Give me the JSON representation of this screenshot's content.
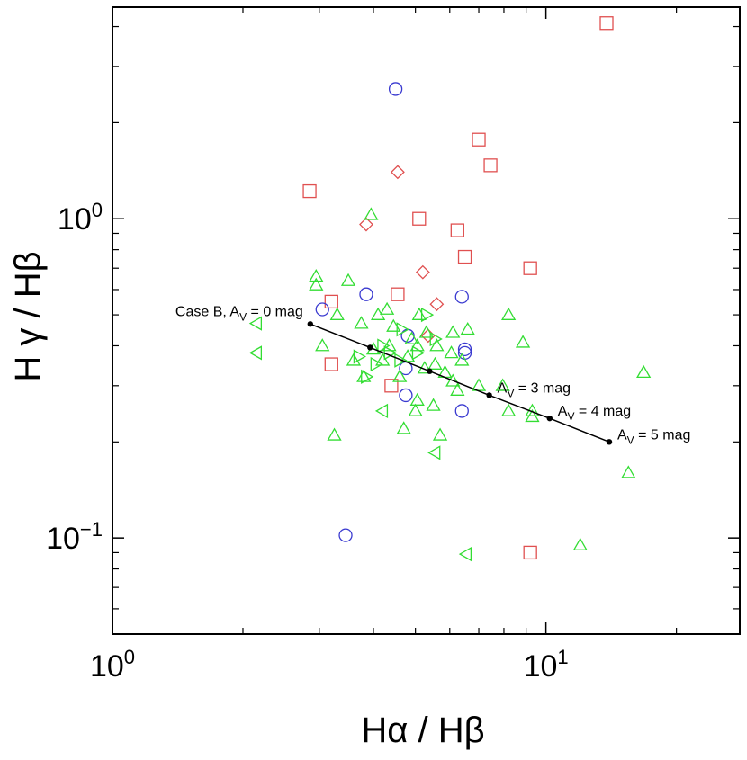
{
  "chart_data": {
    "type": "scatter",
    "title": "",
    "xlabel": "Hα / Hβ",
    "ylabel": "H γ / Hβ",
    "xscale": "log",
    "yscale": "log",
    "xlim": [
      1.0,
      28.0
    ],
    "ylim": [
      0.05,
      4.6
    ],
    "xticks": [
      {
        "value": 1,
        "base": "10",
        "exp": "0"
      },
      {
        "value": 10,
        "base": "10",
        "exp": "1"
      }
    ],
    "yticks": [
      {
        "value": 0.1,
        "base": "10",
        "exp": "−1"
      },
      {
        "value": 1,
        "base": "10",
        "exp": "0"
      }
    ],
    "series": [
      {
        "name": "squares",
        "marker": "square",
        "color": "#e05050",
        "points": [
          [
            13.8,
            4.1
          ],
          [
            2.85,
            1.22
          ],
          [
            7.0,
            1.77
          ],
          [
            7.45,
            1.47
          ],
          [
            5.1,
            1.0
          ],
          [
            6.25,
            0.92
          ],
          [
            6.5,
            0.76
          ],
          [
            9.2,
            0.7
          ],
          [
            3.2,
            0.55
          ],
          [
            4.55,
            0.58
          ],
          [
            3.2,
            0.35
          ],
          [
            4.4,
            0.3
          ],
          [
            9.2,
            0.09
          ]
        ]
      },
      {
        "name": "diamonds",
        "marker": "diamond",
        "color": "#e05050",
        "points": [
          [
            4.55,
            1.4
          ],
          [
            3.85,
            0.96
          ],
          [
            5.2,
            0.68
          ],
          [
            5.6,
            0.54
          ],
          [
            5.35,
            0.43
          ]
        ]
      },
      {
        "name": "circles",
        "marker": "circle",
        "color": "#3a3ad0",
        "points": [
          [
            4.5,
            2.55
          ],
          [
            3.85,
            0.58
          ],
          [
            3.05,
            0.52
          ],
          [
            6.4,
            0.57
          ],
          [
            4.8,
            0.43
          ],
          [
            6.5,
            0.39
          ],
          [
            6.5,
            0.38
          ],
          [
            4.75,
            0.34
          ],
          [
            4.75,
            0.28
          ],
          [
            6.4,
            0.25
          ],
          [
            3.45,
            0.102
          ]
        ]
      },
      {
        "name": "triangles-up",
        "marker": "triangle-up",
        "color": "#33dd33",
        "points": [
          [
            2.95,
            0.66
          ],
          [
            2.95,
            0.62
          ],
          [
            3.95,
            1.03
          ],
          [
            3.5,
            0.64
          ],
          [
            3.3,
            0.5
          ],
          [
            4.1,
            0.5
          ],
          [
            3.75,
            0.47
          ],
          [
            4.45,
            0.46
          ],
          [
            4.9,
            0.42
          ],
          [
            5.3,
            0.44
          ],
          [
            6.1,
            0.44
          ],
          [
            6.6,
            0.45
          ],
          [
            4.0,
            0.39
          ],
          [
            4.35,
            0.4
          ],
          [
            5.05,
            0.4
          ],
          [
            5.6,
            0.4
          ],
          [
            6.05,
            0.38
          ],
          [
            3.6,
            0.36
          ],
          [
            4.2,
            0.36
          ],
          [
            4.8,
            0.37
          ],
          [
            5.55,
            0.35
          ],
          [
            6.4,
            0.36
          ],
          [
            3.8,
            0.32
          ],
          [
            4.6,
            0.32
          ],
          [
            5.25,
            0.34
          ],
          [
            5.85,
            0.33
          ],
          [
            6.1,
            0.31
          ],
          [
            6.25,
            0.29
          ],
          [
            7.0,
            0.3
          ],
          [
            7.95,
            0.3
          ],
          [
            5.5,
            0.26
          ],
          [
            5.05,
            0.27
          ],
          [
            4.7,
            0.22
          ],
          [
            5.7,
            0.21
          ],
          [
            5.0,
            0.25
          ],
          [
            8.2,
            0.5
          ],
          [
            8.85,
            0.41
          ],
          [
            8.2,
            0.25
          ],
          [
            9.3,
            0.25
          ],
          [
            9.3,
            0.24
          ],
          [
            15.5,
            0.16
          ],
          [
            16.8,
            0.33
          ],
          [
            3.25,
            0.21
          ],
          [
            12.0,
            0.095
          ],
          [
            3.05,
            0.4
          ],
          [
            5.1,
            0.5
          ],
          [
            4.3,
            0.52
          ]
        ]
      },
      {
        "name": "triangles-right",
        "marker": "triangle-right",
        "color": "#33dd33",
        "points": [
          [
            4.65,
            0.45
          ],
          [
            4.2,
            0.4
          ],
          [
            3.7,
            0.37
          ],
          [
            4.05,
            0.35
          ],
          [
            3.85,
            0.32
          ],
          [
            5.05,
            0.38
          ],
          [
            5.55,
            0.42
          ],
          [
            4.6,
            0.36
          ],
          [
            5.3,
            0.5
          ],
          [
            4.35,
            0.38
          ]
        ]
      },
      {
        "name": "triangles-left",
        "marker": "triangle-left",
        "color": "#33dd33",
        "points": [
          [
            2.15,
            0.47
          ],
          [
            2.15,
            0.38
          ],
          [
            4.2,
            0.25
          ],
          [
            5.55,
            0.185
          ],
          [
            6.55,
            0.089
          ]
        ]
      }
    ],
    "reddening_line": {
      "color": "#000000",
      "points": [
        [
          2.86,
          0.468
        ],
        [
          3.93,
          0.395
        ],
        [
          5.39,
          0.333
        ],
        [
          7.4,
          0.28
        ],
        [
          10.2,
          0.237
        ],
        [
          14.0,
          0.2
        ]
      ],
      "labels": [
        {
          "index": 0,
          "prefix": "Case B, A",
          "sub": "V",
          "suffix": " = 0 mag",
          "position": "left"
        },
        {
          "index": 3,
          "prefix": "A",
          "sub": "V",
          "suffix": " = 3 mag",
          "position": "right"
        },
        {
          "index": 4,
          "prefix": "A",
          "sub": "V",
          "suffix": " = 4 mag",
          "position": "right"
        },
        {
          "index": 5,
          "prefix": "A",
          "sub": "V",
          "suffix": " = 5 mag",
          "position": "right"
        }
      ]
    }
  }
}
